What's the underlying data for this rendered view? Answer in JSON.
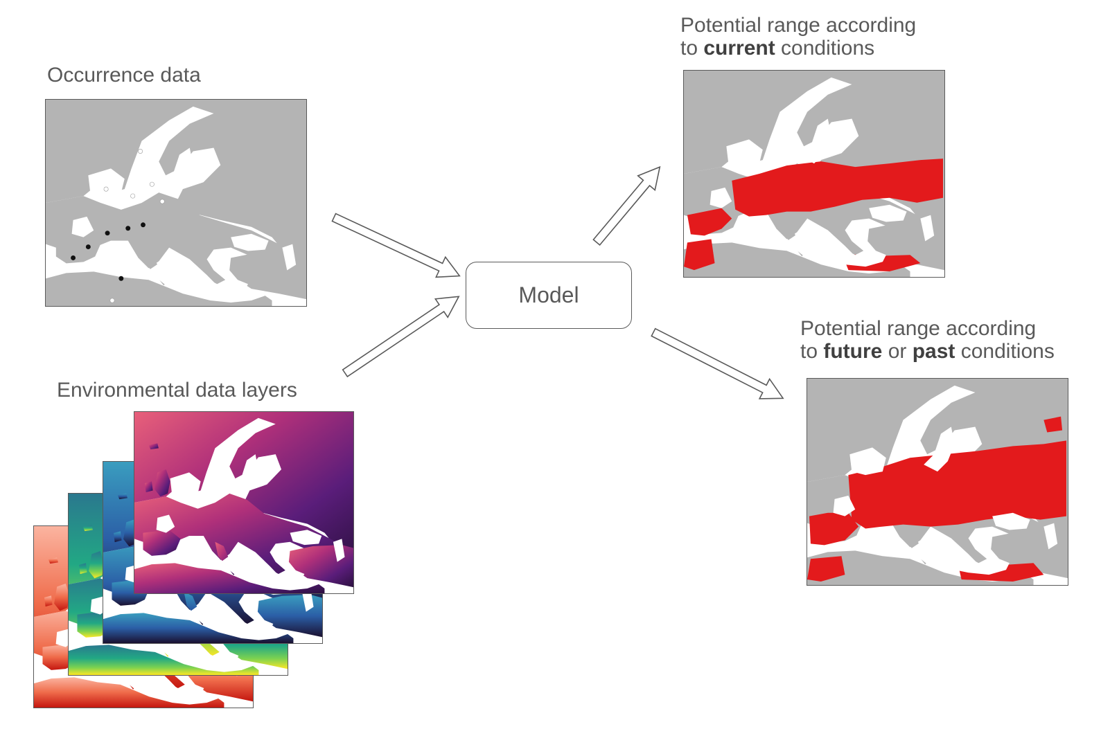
{
  "labels": {
    "occurrence": "Occurrence data",
    "environmental": "Environmental data layers",
    "model": "Model",
    "current_line1": "Potential range according",
    "current_line2_pre": "to ",
    "current_line2_bold": "current",
    "current_line2_post": " conditions",
    "future_line1": "Potential range according",
    "future_line2_pre": "to ",
    "future_line2_bold1": "future",
    "future_line2_mid": " or ",
    "future_line2_bold2": "past",
    "future_line2_post": " conditions"
  },
  "colors": {
    "land": "#b4b4b4",
    "sea": "#ffffff",
    "range": "#e31a1c",
    "frame": "#595959",
    "presence_point": "#111111",
    "background_point": "#ffffff"
  },
  "occurrence_points": {
    "presence_count": 7,
    "background_count": 6
  },
  "layer_palettes": [
    "red-orange",
    "viridis",
    "blue-navy",
    "magma-purple"
  ]
}
